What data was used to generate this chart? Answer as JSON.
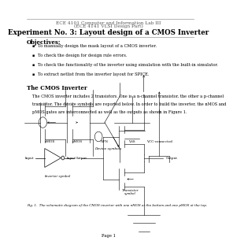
{
  "header_line1": "ECE 4101 Computer and Information Lab III",
  "header_line2": "(ECE 4141 VLSI Design Part)",
  "title": "Experiment No. 3: Layout design of a CMOS Inverter",
  "objectives_header": "Objectives:",
  "objectives": [
    "To manually design the mask layout of a CMOS inverter.",
    "To check the design for design rule errors.",
    "To check the functionality of the inverter using simulation with the built-in simulator.",
    "To extract netlist from the inverter layout for SPICE."
  ],
  "cmos_header": "The CMOS Inverter",
  "cmos_body1": "The CMOS inverter includes 2 transistors. One is a n-channel transistor, the other a p-channel",
  "cmos_body2": "transistor. The device symbols are reported below. In order to build the inverter, the nMOS and",
  "cmos_body3": "pMOS gates are interconnected as well as the outputs as shown in Figure 1.",
  "device_labels": [
    "nMOS",
    "pMOS",
    "NPN",
    "VSS",
    "VCC-connected"
  ],
  "device_caption": "Device symbols",
  "inverter_caption": "Inverter symbol",
  "transistor_caption": "Transistor\nsymbol",
  "figure_caption": "Fig. 1.  The schematic diagram of the CMOS inverter with one nMOS at the bottom and one pMOS at the top.",
  "page_label": "Page 1",
  "bg_color": "#ffffff"
}
